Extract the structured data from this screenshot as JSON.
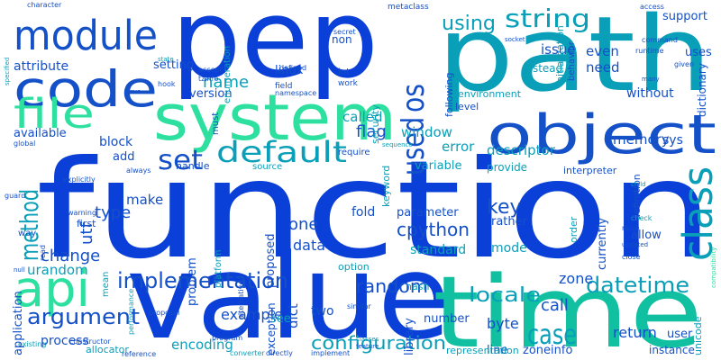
{
  "words": [
    "function",
    "value",
    "pep",
    "path",
    "time",
    "system",
    "object",
    "code",
    "module",
    "file",
    "api",
    "class",
    "used",
    "os",
    "default",
    "set",
    "method",
    "implementation",
    "argument",
    "datetime",
    "case",
    "locale",
    "random",
    "configuration",
    "string",
    "using",
    "memory",
    "descriptor",
    "window",
    "flag",
    "cpython",
    "example",
    "encoding",
    "return",
    "byte",
    "call",
    "key",
    "one",
    "data",
    "standard",
    "mode",
    "fold",
    "parameter",
    "error",
    "variable",
    "provide",
    "called",
    "name",
    "version",
    "linux",
    "setting",
    "attribute",
    "available",
    "block",
    "add",
    "handle",
    "source",
    "sys",
    "without",
    "need",
    "even",
    "issue",
    "support",
    "uses",
    "dictionary",
    "instead",
    "interpreter",
    "rather",
    "currently",
    "order",
    "allow",
    "definition",
    "zone",
    "user",
    "instance",
    "unicode",
    "line",
    "zoneinfo",
    "library",
    "number",
    "representation",
    "hash",
    "two",
    "dict",
    "exception",
    "option",
    "mean",
    "security",
    "keyword",
    "require",
    "non",
    "enumeration",
    "must",
    "level",
    "following",
    "environment",
    "initialization",
    "behavior",
    "platform",
    "int",
    "work",
    "field",
    "namespace",
    "defined",
    "accept",
    "tzinfo",
    "secret",
    "metaclass",
    "access",
    "command",
    "runtime",
    "many",
    "given",
    "socket",
    "state",
    "hook",
    "true",
    "global",
    "guard",
    "explicitly",
    "always",
    "sequence",
    "child",
    "check",
    "raise",
    "close",
    "updated",
    "compatibility",
    "feature",
    "classes",
    "similar",
    "program",
    "proposal",
    "alternative",
    "constructor",
    "existing",
    "reference",
    "performance",
    "converter",
    "directly",
    "implement",
    "character",
    "specified",
    "warning",
    "utf",
    "way",
    "read",
    "null",
    "application",
    "urandom",
    "process",
    "allocator",
    "see",
    "change",
    "first",
    "type",
    "make",
    "problem",
    "proposed"
  ]
}
